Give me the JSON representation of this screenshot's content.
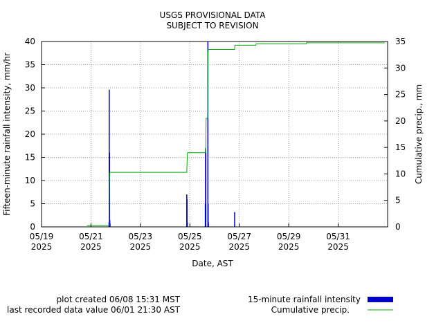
{
  "chart_data": {
    "type": "bar+line",
    "title": "USGS PROVISIONAL DATA",
    "subtitle": "SUBJECT TO REVISION",
    "xlabel": "Date, AST",
    "ylabel_left": "Fifteen-minute rainfall intensity, mm/hr",
    "ylabel_right": "Cumulative precip., mm",
    "x_range": [
      "2025-05-19",
      "2025-06-02T00:00"
    ],
    "ylim_left": [
      0,
      40
    ],
    "ylim_right": [
      0,
      35
    ],
    "yticks_left": [
      "0",
      "5",
      "10",
      "15",
      "20",
      "25",
      "30",
      "35",
      "40"
    ],
    "yticks_right": [
      "0",
      "5",
      "10",
      "15",
      "20",
      "25",
      "30",
      "35"
    ],
    "xticks": [
      {
        "date": "2025-05-19",
        "label1": "05/19",
        "label2": "2025"
      },
      {
        "date": "2025-05-21",
        "label1": "05/21",
        "label2": "2025"
      },
      {
        "date": "2025-05-23",
        "label1": "05/23",
        "label2": "2025"
      },
      {
        "date": "2025-05-25",
        "label1": "05/25",
        "label2": "2025"
      },
      {
        "date": "2025-05-27",
        "label1": "05/27",
        "label2": "2025"
      },
      {
        "date": "2025-05-29",
        "label1": "05/29",
        "label2": "2025"
      },
      {
        "date": "2025-05-31",
        "label1": "05/31",
        "label2": "2025"
      }
    ],
    "grid": true,
    "series": [
      {
        "name": "15-minute rainfall intensity",
        "kind": "bar",
        "color": "#0000cc",
        "axis": "left",
        "points": [
          {
            "t": "2025-05-21T17:30",
            "v": 1.0
          },
          {
            "t": "2025-05-21T17:45",
            "v": 29.6
          },
          {
            "t": "2025-05-21T18:00",
            "v": 16.0
          },
          {
            "t": "2025-05-21T18:15",
            "v": 1.5
          },
          {
            "t": "2025-05-21T18:30",
            "v": 0.8
          },
          {
            "t": "2025-05-24T21:00",
            "v": 7.0
          },
          {
            "t": "2025-05-24T21:15",
            "v": 6.0
          },
          {
            "t": "2025-05-24T21:30",
            "v": 1.0
          },
          {
            "t": "2025-05-25T15:00",
            "v": 5.0
          },
          {
            "t": "2025-05-25T15:15",
            "v": 17.0
          },
          {
            "t": "2025-05-25T15:30",
            "v": 16.0
          },
          {
            "t": "2025-05-25T17:30",
            "v": 40.0
          },
          {
            "t": "2025-05-25T17:45",
            "v": 5.0
          },
          {
            "t": "2025-05-25T18:00",
            "v": 1.0
          },
          {
            "t": "2025-05-26T19:30",
            "v": 3.2
          }
        ]
      },
      {
        "name": "Cumulative precip.",
        "kind": "line",
        "color": "#00aa00",
        "axis": "right",
        "points": [
          {
            "t": "2025-05-20T20:00",
            "v": 0.25
          },
          {
            "t": "2025-05-21T17:30",
            "v": 0.25
          },
          {
            "t": "2025-05-21T17:45",
            "v": 7.7
          },
          {
            "t": "2025-05-21T18:00",
            "v": 9.7
          },
          {
            "t": "2025-05-21T18:15",
            "v": 10.1
          },
          {
            "t": "2025-05-21T18:30",
            "v": 10.3
          },
          {
            "t": "2025-05-24T21:00",
            "v": 10.3
          },
          {
            "t": "2025-05-24T21:15",
            "v": 12.0
          },
          {
            "t": "2025-05-24T21:30",
            "v": 13.5
          },
          {
            "t": "2025-05-24T21:45",
            "v": 14.0
          },
          {
            "t": "2025-05-25T15:00",
            "v": 14.0
          },
          {
            "t": "2025-05-25T15:15",
            "v": 14.8
          },
          {
            "t": "2025-05-25T15:30",
            "v": 15.1
          },
          {
            "t": "2025-05-25T15:45",
            "v": 20.5
          },
          {
            "t": "2025-05-25T17:15",
            "v": 20.5
          },
          {
            "t": "2025-05-25T17:30",
            "v": 32.0
          },
          {
            "t": "2025-05-25T17:45",
            "v": 33.2
          },
          {
            "t": "2025-05-25T18:00",
            "v": 33.5
          },
          {
            "t": "2025-05-26T19:30",
            "v": 33.5
          },
          {
            "t": "2025-05-26T19:45",
            "v": 34.3
          },
          {
            "t": "2025-05-27T16:00",
            "v": 34.3
          },
          {
            "t": "2025-05-27T16:15",
            "v": 34.55
          },
          {
            "t": "2025-05-29T17:00",
            "v": 34.55
          },
          {
            "t": "2025-05-29T17:15",
            "v": 34.75
          },
          {
            "t": "2025-06-01T21:30",
            "v": 34.75
          }
        ]
      }
    ],
    "legend": {
      "placement": "bottom-right",
      "entries": [
        "15-minute rainfall intensity",
        "Cumulative precip."
      ]
    }
  },
  "footer": {
    "created": "plot created 06/08 15:31 MST",
    "last_value": "last recorded data value 06/01 21:30 AST"
  }
}
